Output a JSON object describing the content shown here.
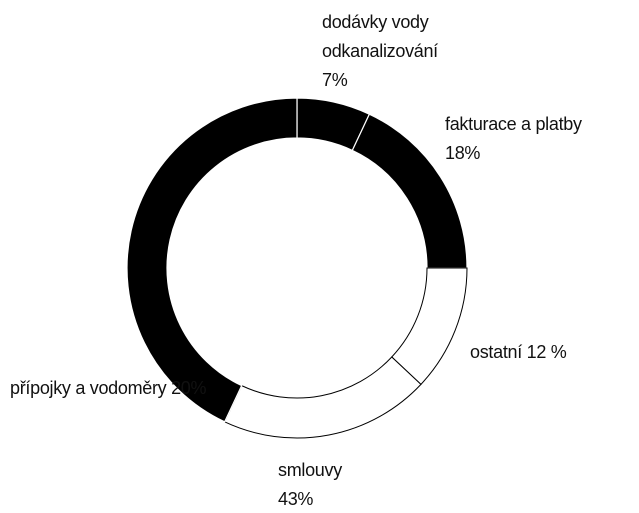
{
  "chart_data": {
    "type": "donut",
    "categories": [
      "dodávky vody odkanalizování",
      "fakturace a platby",
      "ostatní",
      "přípojky a vodoměry",
      "smlouvy"
    ],
    "values": [
      7,
      18,
      12,
      20,
      43
    ],
    "value_labels": [
      "7%",
      "18%",
      "12 %",
      "20%",
      "43%"
    ],
    "colors": [
      "#000000",
      "#000000",
      "#ffffff",
      "#ffffff",
      "#000000"
    ]
  }
}
